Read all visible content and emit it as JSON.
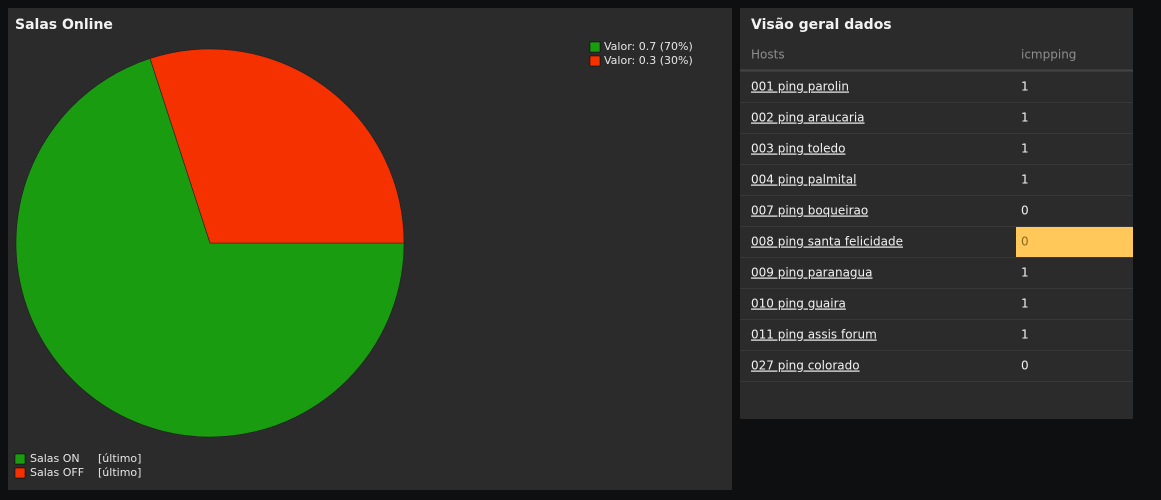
{
  "chart_data": {
    "type": "pie",
    "title": "Salas Online",
    "categories": [
      "Salas ON",
      "Salas OFF"
    ],
    "values": [
      0.7,
      0.3
    ],
    "value_labels": [
      "Valor: 0.7 (70%)",
      "Valor: 0.3 (30%)"
    ],
    "colors": [
      "#1a9c11",
      "#f63100"
    ],
    "legend_notes": [
      "[último]",
      "[último]"
    ]
  },
  "table": {
    "title": "Visão geral dados",
    "columns": [
      "Hosts",
      "icmpping"
    ],
    "rows": [
      [
        "001 ping parolin",
        1
      ],
      [
        "002 ping araucaria",
        1
      ],
      [
        "003 ping toledo",
        1
      ],
      [
        "004 ping palmital",
        1
      ],
      [
        "007 ping boqueirao",
        0
      ],
      [
        "008 ping santa felicidade",
        0
      ],
      [
        "009 ping paranagua",
        1
      ],
      [
        "010 ping guaira",
        1
      ],
      [
        "011 ping assis forum",
        1
      ],
      [
        "027 ping colorado",
        0
      ]
    ],
    "highlighted_rows": [
      5
    ],
    "highlight_color": "#ffc859"
  }
}
